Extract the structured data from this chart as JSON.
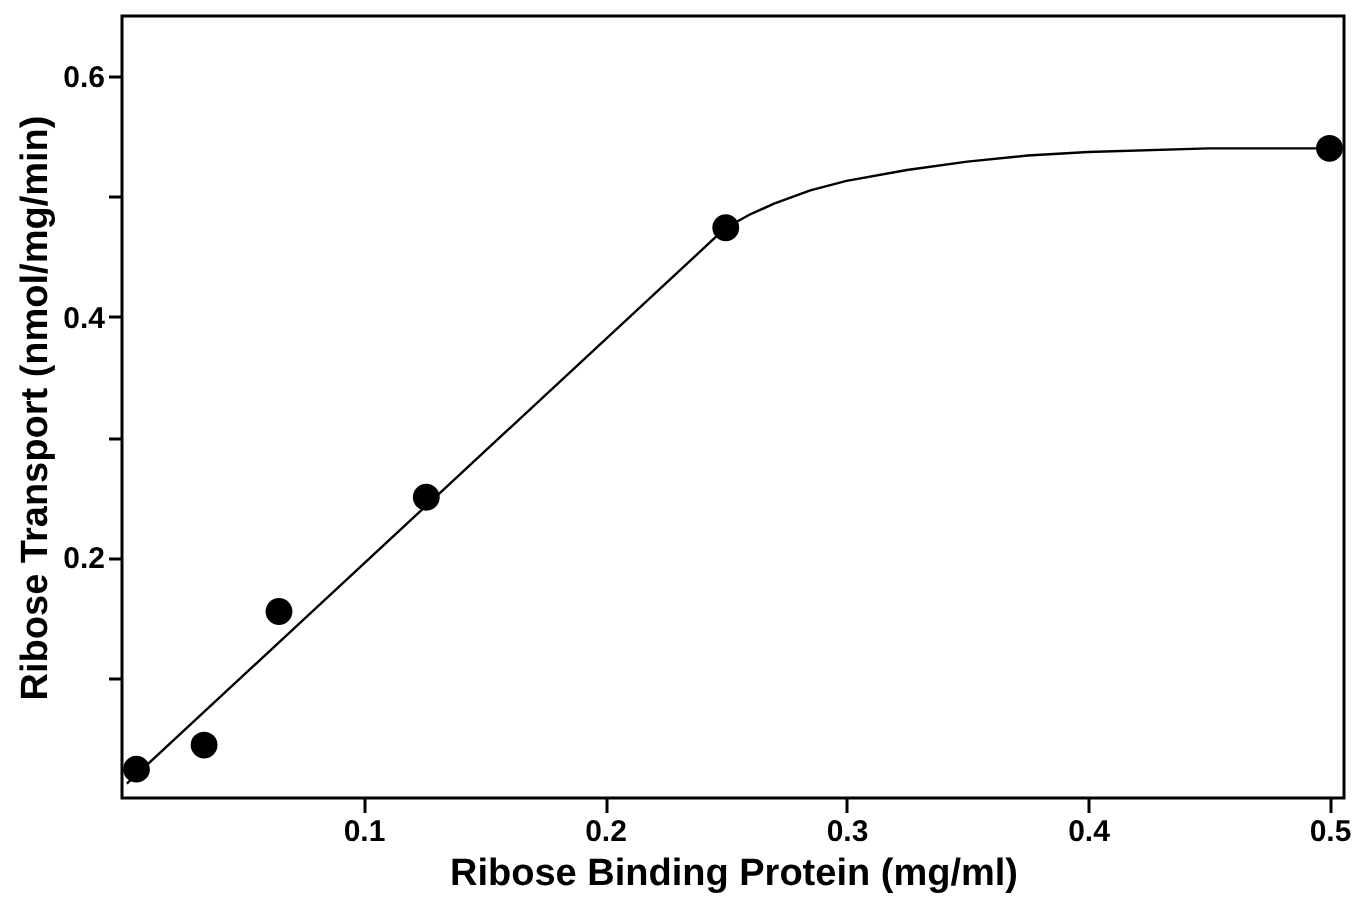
{
  "chart_data": {
    "type": "scatter",
    "xlabel": "Ribose Binding Protein (mg/ml)",
    "ylabel": "Ribose Transport (nmol/mg/min)",
    "xlim": [
      0,
      0.506
    ],
    "ylim": [
      0,
      0.65
    ],
    "xticks": [
      0.1,
      0.2,
      0.3,
      0.4,
      0.5
    ],
    "yticks": [
      {
        "value": 0.1,
        "label": null
      },
      0.2,
      {
        "value": 0.3,
        "label": null
      },
      0.4,
      {
        "value": 0.5,
        "label": null
      },
      0.6
    ],
    "grid": false,
    "marker": "circle",
    "series": [
      {
        "color": "#000000",
        "x": [
          0.006,
          0.034,
          0.065,
          0.126,
          0.25,
          0.5
        ],
        "values": [
          0.024,
          0.044,
          0.155,
          0.25,
          0.474,
          0.54
        ]
      },
      {
        "type": "line",
        "color": "#000000",
        "line_style": "solid",
        "marker": "none",
        "x": [
          0.002,
          0.25,
          0.26,
          0.27,
          0.285,
          0.3,
          0.325,
          0.35,
          0.375,
          0.4,
          0.45,
          0.5
        ],
        "values": [
          0.012,
          0.474,
          0.485,
          0.494,
          0.505,
          0.513,
          0.522,
          0.529,
          0.534,
          0.537,
          0.54,
          0.54
        ]
      }
    ]
  }
}
